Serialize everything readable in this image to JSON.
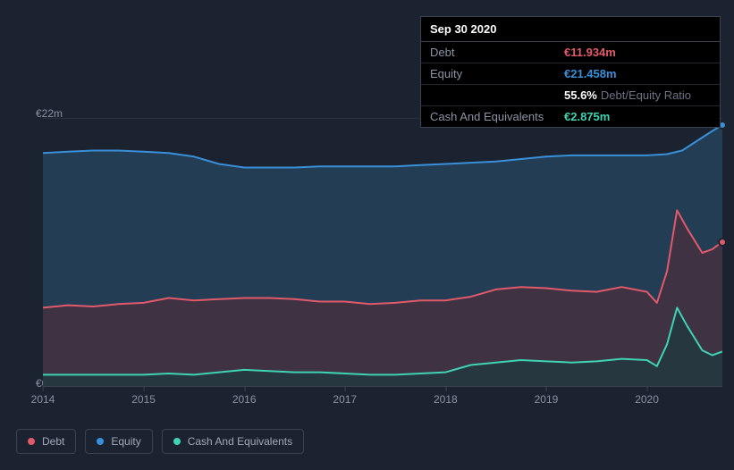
{
  "tooltip": {
    "date": "Sep 30 2020",
    "rows": [
      {
        "label": "Debt",
        "value": "€11.934m",
        "color": "#e15a6b"
      },
      {
        "label": "Equity",
        "value": "€21.458m",
        "color": "#3a8fd9"
      },
      {
        "label": "",
        "value": "55.6%",
        "suffix": "Debt/Equity Ratio",
        "color": "#ffffff"
      },
      {
        "label": "Cash And Equivalents",
        "value": "€2.875m",
        "color": "#3fd2b3"
      }
    ]
  },
  "chart": {
    "type": "area",
    "background_color": "#1c2330",
    "grid_color": "#2a3240",
    "axis_color": "#3a4251",
    "label_color": "#8a92a3",
    "label_fontsize": 12,
    "ylim": [
      0,
      22
    ],
    "yticks": [
      {
        "v": 0,
        "label": "€0"
      },
      {
        "v": 22,
        "label": "€22m"
      }
    ],
    "xlim": [
      2014,
      2020.75
    ],
    "xticks": [
      2014,
      2015,
      2016,
      2017,
      2018,
      2019,
      2020
    ],
    "series": [
      {
        "name": "Equity",
        "stroke": "#3a8fd9",
        "fill": "#23425a",
        "fill_opacity": 0.85,
        "line_width": 2,
        "end_marker": true,
        "points": [
          [
            2014.0,
            19.2
          ],
          [
            2014.25,
            19.3
          ],
          [
            2014.5,
            19.4
          ],
          [
            2014.75,
            19.4
          ],
          [
            2015.0,
            19.3
          ],
          [
            2015.25,
            19.2
          ],
          [
            2015.5,
            18.9
          ],
          [
            2015.75,
            18.3
          ],
          [
            2016.0,
            18.0
          ],
          [
            2016.25,
            18.0
          ],
          [
            2016.5,
            18.0
          ],
          [
            2016.75,
            18.1
          ],
          [
            2017.0,
            18.1
          ],
          [
            2017.25,
            18.1
          ],
          [
            2017.5,
            18.1
          ],
          [
            2017.75,
            18.2
          ],
          [
            2018.0,
            18.3
          ],
          [
            2018.25,
            18.4
          ],
          [
            2018.5,
            18.5
          ],
          [
            2018.75,
            18.7
          ],
          [
            2019.0,
            18.9
          ],
          [
            2019.25,
            19.0
          ],
          [
            2019.5,
            19.0
          ],
          [
            2019.75,
            19.0
          ],
          [
            2020.0,
            19.0
          ],
          [
            2020.2,
            19.1
          ],
          [
            2020.35,
            19.4
          ],
          [
            2020.5,
            20.2
          ],
          [
            2020.65,
            21.0
          ],
          [
            2020.75,
            21.5
          ]
        ]
      },
      {
        "name": "Debt",
        "stroke": "#e15a6b",
        "fill": "#4a2f3e",
        "fill_opacity": 0.75,
        "line_width": 2,
        "end_marker": true,
        "points": [
          [
            2014.0,
            6.5
          ],
          [
            2014.25,
            6.7
          ],
          [
            2014.5,
            6.6
          ],
          [
            2014.75,
            6.8
          ],
          [
            2015.0,
            6.9
          ],
          [
            2015.25,
            7.3
          ],
          [
            2015.5,
            7.1
          ],
          [
            2015.75,
            7.2
          ],
          [
            2016.0,
            7.3
          ],
          [
            2016.25,
            7.3
          ],
          [
            2016.5,
            7.2
          ],
          [
            2016.75,
            7.0
          ],
          [
            2017.0,
            7.0
          ],
          [
            2017.25,
            6.8
          ],
          [
            2017.5,
            6.9
          ],
          [
            2017.75,
            7.1
          ],
          [
            2018.0,
            7.1
          ],
          [
            2018.25,
            7.4
          ],
          [
            2018.5,
            8.0
          ],
          [
            2018.75,
            8.2
          ],
          [
            2019.0,
            8.1
          ],
          [
            2019.25,
            7.9
          ],
          [
            2019.5,
            7.8
          ],
          [
            2019.75,
            8.2
          ],
          [
            2020.0,
            7.8
          ],
          [
            2020.1,
            6.9
          ],
          [
            2020.2,
            9.5
          ],
          [
            2020.3,
            14.5
          ],
          [
            2020.4,
            13.0
          ],
          [
            2020.55,
            11.0
          ],
          [
            2020.65,
            11.3
          ],
          [
            2020.75,
            11.9
          ]
        ]
      },
      {
        "name": "Cash And Equivalents",
        "stroke": "#3fd2b3",
        "fill": "#1f3a3f",
        "fill_opacity": 0.75,
        "line_width": 2,
        "end_marker": false,
        "points": [
          [
            2014.0,
            1.0
          ],
          [
            2014.25,
            1.0
          ],
          [
            2014.5,
            1.0
          ],
          [
            2014.75,
            1.0
          ],
          [
            2015.0,
            1.0
          ],
          [
            2015.25,
            1.1
          ],
          [
            2015.5,
            1.0
          ],
          [
            2015.75,
            1.2
          ],
          [
            2016.0,
            1.4
          ],
          [
            2016.25,
            1.3
          ],
          [
            2016.5,
            1.2
          ],
          [
            2016.75,
            1.2
          ],
          [
            2017.0,
            1.1
          ],
          [
            2017.25,
            1.0
          ],
          [
            2017.5,
            1.0
          ],
          [
            2017.75,
            1.1
          ],
          [
            2018.0,
            1.2
          ],
          [
            2018.25,
            1.8
          ],
          [
            2018.5,
            2.0
          ],
          [
            2018.75,
            2.2
          ],
          [
            2019.0,
            2.1
          ],
          [
            2019.25,
            2.0
          ],
          [
            2019.5,
            2.1
          ],
          [
            2019.75,
            2.3
          ],
          [
            2020.0,
            2.2
          ],
          [
            2020.1,
            1.7
          ],
          [
            2020.2,
            3.5
          ],
          [
            2020.3,
            6.5
          ],
          [
            2020.4,
            5.0
          ],
          [
            2020.55,
            3.0
          ],
          [
            2020.65,
            2.6
          ],
          [
            2020.75,
            2.9
          ]
        ]
      }
    ]
  },
  "legend": [
    {
      "label": "Debt",
      "color": "#e15a6b"
    },
    {
      "label": "Equity",
      "color": "#3a8fd9"
    },
    {
      "label": "Cash And Equivalents",
      "color": "#3fd2b3"
    }
  ]
}
